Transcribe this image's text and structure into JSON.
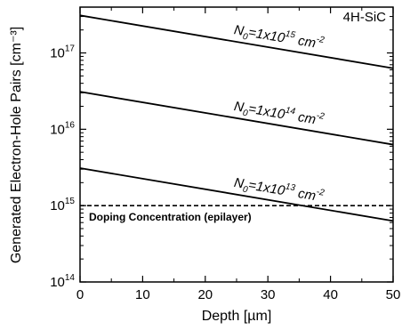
{
  "chart_data": {
    "type": "line",
    "corner_label": "4H-SiC",
    "xlabel": "Depth [µm]",
    "ylabel": "Generated Electron-Hole Pairs [cm⁻³]",
    "xlim": [
      0,
      50
    ],
    "ylim_log10": [
      14,
      17.6
    ],
    "y_scale": "log",
    "grid": false,
    "x_ticks": [
      0,
      10,
      20,
      30,
      40,
      50
    ],
    "y_ticks": [
      {
        "exp": 14,
        "base": "10",
        "sup": "14"
      },
      {
        "exp": 15,
        "base": "10",
        "sup": "15"
      },
      {
        "exp": 16,
        "base": "10",
        "sup": "16"
      },
      {
        "exp": 17,
        "base": "10",
        "sup": "17"
      }
    ],
    "series": [
      {
        "label_parts": {
          "pre": "N",
          "sub": "0",
          "mid": "=1x10",
          "sup": "15",
          "unit": " cm",
          "unit_sup": "-2"
        },
        "x": [
          0,
          50
        ],
        "y": [
          3.1e+17,
          6.3e+16
        ],
        "label_at": [
          24.5,
          17.25
        ]
      },
      {
        "label_parts": {
          "pre": "N",
          "sub": "0",
          "mid": "=1x10",
          "sup": "14",
          "unit": " cm",
          "unit_sup": "-2"
        },
        "x": [
          0,
          50
        ],
        "y": [
          3.1e+16,
          6300000000000000.0
        ],
        "label_at": [
          24.5,
          16.25
        ]
      },
      {
        "label_parts": {
          "pre": "N",
          "sub": "0",
          "mid": "=1x10",
          "sup": "13",
          "unit": " cm",
          "unit_sup": "-2"
        },
        "x": [
          0,
          50
        ],
        "y": [
          3100000000000000.0,
          630000000000000.0
        ],
        "label_at": [
          24.5,
          15.25
        ]
      }
    ],
    "reference_line": {
      "label": "Doping Concentration (epilayer)",
      "y": 1000000000000000.0,
      "style": "dashed"
    }
  }
}
